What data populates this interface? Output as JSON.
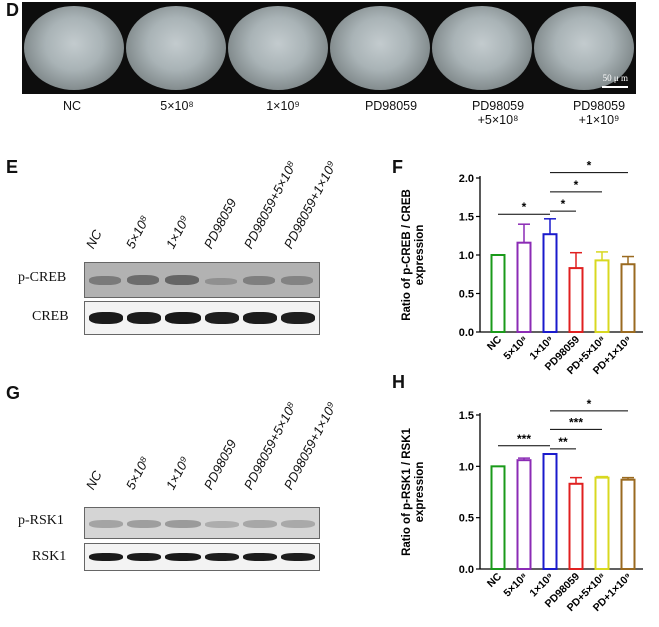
{
  "panel_d": {
    "letter": "D",
    "scale_bar": "50 μ m",
    "conditions": [
      {
        "line1": "NC",
        "line2": ""
      },
      {
        "line1": "5×10⁸",
        "line2": ""
      },
      {
        "line1": "1×10⁹",
        "line2": ""
      },
      {
        "line1": "PD98059",
        "line2": ""
      },
      {
        "line1": "PD98059",
        "line2": "+5×10⁸"
      },
      {
        "line1": "PD98059",
        "line2": "+1×10⁹"
      }
    ]
  },
  "panel_e": {
    "letter": "E",
    "lanes": [
      "NC",
      "5×10⁸",
      "1×10⁹",
      "PD98059",
      "PD98059+5×10⁸",
      "PD98059+1×10⁹"
    ],
    "rows": [
      "p-CREB",
      "CREB"
    ]
  },
  "panel_g": {
    "letter": "G",
    "lanes": [
      "NC",
      "5×10⁸",
      "1×10⁹",
      "PD98059",
      "PD98059+5×10⁸",
      "PD98059+1×10⁹"
    ],
    "rows": [
      "p-RSK1",
      "RSK1"
    ]
  },
  "chart_data": [
    {
      "type": "bar",
      "letter": "F",
      "ylabel": "Ratio of p-CREB / CREB\nexpression",
      "categories": [
        "NC",
        "5×10⁸",
        "1×10⁹",
        "PD98059",
        "PD+5×10⁸",
        "PD+1×10⁹"
      ],
      "values": [
        1.0,
        1.16,
        1.27,
        0.83,
        0.93,
        0.88
      ],
      "errors": [
        0.0,
        0.24,
        0.2,
        0.2,
        0.11,
        0.1
      ],
      "colors": [
        "#1a9a1a",
        "#8b2bb5",
        "#1a1acc",
        "#e02020",
        "#d8d820",
        "#9a6a20"
      ],
      "ylim": [
        0,
        2.0
      ],
      "yticks": [
        "0.0",
        "0.5",
        "1.0",
        "1.5",
        "2.0"
      ],
      "significance": [
        {
          "from": 0,
          "to": 2,
          "y": 1.53,
          "label": "*"
        },
        {
          "from": 2,
          "to": 3,
          "y": 1.57,
          "label": "*"
        },
        {
          "from": 2,
          "to": 4,
          "y": 1.82,
          "label": "*"
        },
        {
          "from": 2,
          "to": 5,
          "y": 2.07,
          "label": "*"
        }
      ]
    },
    {
      "type": "bar",
      "letter": "H",
      "ylabel": "Ratio of p-RSK1 / RSK1\nexpression",
      "categories": [
        "NC",
        "5×10⁸",
        "1×10⁹",
        "PD98059",
        "PD+5×10⁸",
        "PD+1×10⁹"
      ],
      "values": [
        1.0,
        1.06,
        1.12,
        0.83,
        0.89,
        0.87
      ],
      "errors": [
        0.0,
        0.02,
        0.0,
        0.06,
        0.01,
        0.02
      ],
      "colors": [
        "#1a9a1a",
        "#8b2bb5",
        "#1a1acc",
        "#e02020",
        "#d8d820",
        "#9a6a20"
      ],
      "ylim": [
        0,
        1.5
      ],
      "yticks": [
        "0.0",
        "0.5",
        "1.0",
        "1.5"
      ],
      "significance": [
        {
          "from": 0,
          "to": 2,
          "y": 1.2,
          "label": "***"
        },
        {
          "from": 2,
          "to": 3,
          "y": 1.17,
          "label": "**"
        },
        {
          "from": 2,
          "to": 4,
          "y": 1.36,
          "label": "***"
        },
        {
          "from": 2,
          "to": 5,
          "y": 1.54,
          "label": "*"
        }
      ]
    }
  ]
}
